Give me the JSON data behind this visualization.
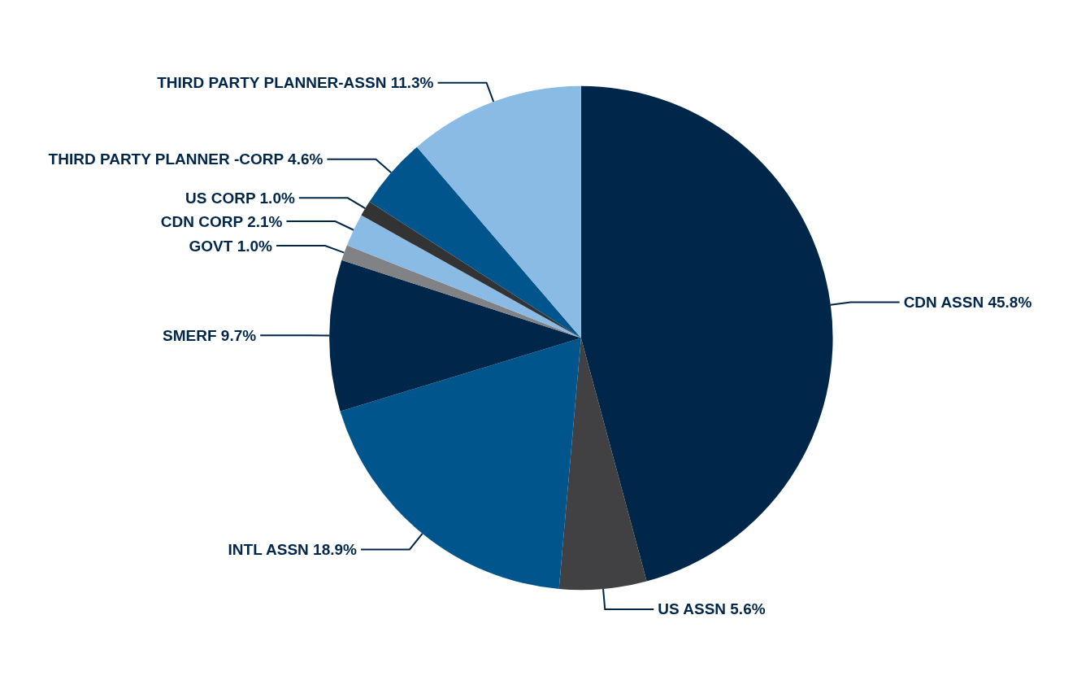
{
  "chart_data": {
    "type": "pie",
    "categories": [
      "CDN ASSN",
      "US ASSN",
      "INTL ASSN",
      "SMERF",
      "GOVT",
      "CDN CORP",
      "US CORP",
      "THIRD PARTY PLANNER -CORP",
      "THIRD PARTY PLANNER-ASSN"
    ],
    "values": [
      45.8,
      5.6,
      18.9,
      9.7,
      1.0,
      2.1,
      1.0,
      4.6,
      11.3
    ],
    "value_labels": [
      "45.8%",
      "5.6%",
      "18.9%",
      "9.7%",
      "1.0%",
      "2.1%",
      "1.0%",
      "4.6%",
      "11.3%"
    ],
    "colors": [
      "#002649",
      "#414042",
      "#00558c",
      "#002649",
      "#808285",
      "#89bbe5",
      "#333333",
      "#00558c",
      "#89bbe5"
    ]
  }
}
